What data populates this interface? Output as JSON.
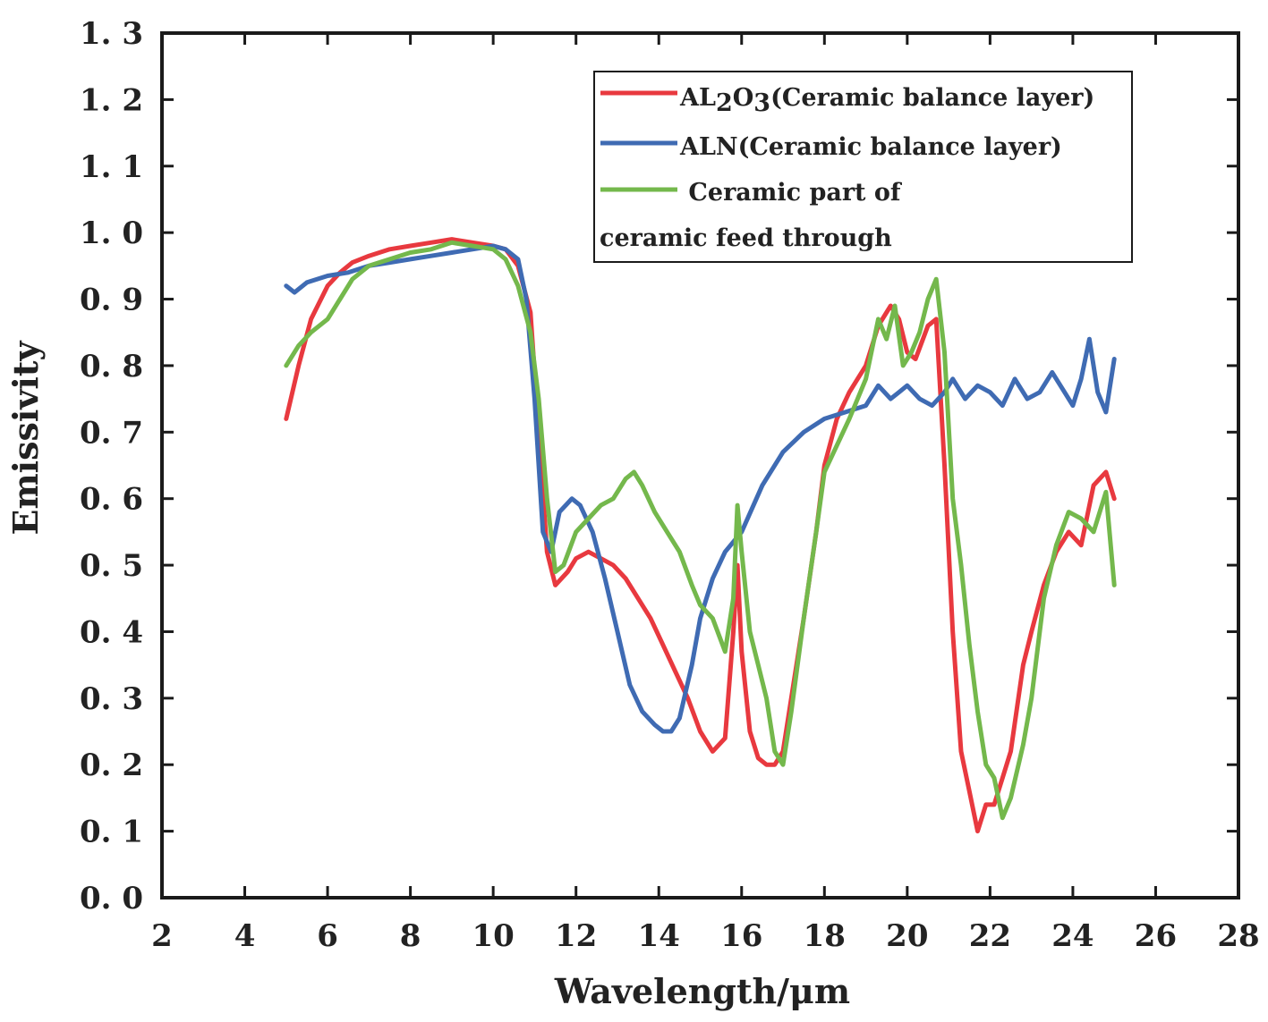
{
  "chart_data": {
    "type": "line",
    "title": "",
    "xlabel": "Wavelength/μm",
    "ylabel": "Emissivity",
    "xlim": [
      2,
      28
    ],
    "ylim": [
      0.0,
      1.3
    ],
    "xticks": [
      "2",
      "4",
      "6",
      "8",
      "10",
      "12",
      "14",
      "16",
      "18",
      "20",
      "22",
      "24",
      "26",
      "28"
    ],
    "yticks": [
      "0. 0",
      "0. 1",
      "0. 2",
      "0. 3",
      "0. 4",
      "0. 5",
      "0. 6",
      "0. 7",
      "0. 8",
      "0. 9",
      "1. 0",
      "1. 1",
      "1. 2",
      "1. 3"
    ],
    "grid": false,
    "legend_position": "top-right",
    "legend_lines": [
      {
        "series": 0,
        "prefix": "AL",
        "sub1": "2",
        "mid": "O",
        "sub2": "3",
        "suffix": "(Ceramic balance layer)"
      },
      {
        "series": 1,
        "text": "ALN(Ceramic balance layer)"
      },
      {
        "series": 2,
        "text": " Ceramic part of"
      },
      {
        "series": null,
        "text": "ceramic feed through"
      }
    ],
    "series": [
      {
        "name": "AL2O3(Ceramic balance layer)",
        "color": "#e8393f",
        "x": [
          5.0,
          5.3,
          5.6,
          6.0,
          6.3,
          6.6,
          7.0,
          7.5,
          8.0,
          8.5,
          9.0,
          9.5,
          10.0,
          10.3,
          10.6,
          10.9,
          11.1,
          11.3,
          11.5,
          11.8,
          12.0,
          12.3,
          12.6,
          12.9,
          13.2,
          13.5,
          13.8,
          14.1,
          14.4,
          14.7,
          15.0,
          15.3,
          15.6,
          15.8,
          15.9,
          16.0,
          16.2,
          16.4,
          16.6,
          16.8,
          17.0,
          17.2,
          17.5,
          17.8,
          18.0,
          18.3,
          18.6,
          19.0,
          19.3,
          19.6,
          19.8,
          20.0,
          20.2,
          20.5,
          20.7,
          20.9,
          21.1,
          21.3,
          21.5,
          21.7,
          21.9,
          22.1,
          22.3,
          22.5,
          22.8,
          23.0,
          23.3,
          23.6,
          23.9,
          24.2,
          24.5,
          24.8,
          25.0
        ],
        "y": [
          0.72,
          0.8,
          0.87,
          0.92,
          0.94,
          0.955,
          0.965,
          0.975,
          0.98,
          0.985,
          0.99,
          0.985,
          0.98,
          0.975,
          0.95,
          0.88,
          0.7,
          0.52,
          0.47,
          0.49,
          0.51,
          0.52,
          0.51,
          0.5,
          0.48,
          0.45,
          0.42,
          0.38,
          0.34,
          0.3,
          0.25,
          0.22,
          0.24,
          0.4,
          0.5,
          0.37,
          0.25,
          0.21,
          0.2,
          0.2,
          0.22,
          0.3,
          0.42,
          0.55,
          0.65,
          0.72,
          0.76,
          0.8,
          0.86,
          0.89,
          0.87,
          0.82,
          0.81,
          0.86,
          0.87,
          0.65,
          0.4,
          0.22,
          0.16,
          0.1,
          0.14,
          0.14,
          0.18,
          0.22,
          0.35,
          0.4,
          0.47,
          0.52,
          0.55,
          0.53,
          0.62,
          0.64,
          0.6
        ]
      },
      {
        "name": "ALN(Ceramic balance layer)",
        "color": "#3f6bb3",
        "x": [
          5.0,
          5.2,
          5.5,
          6.0,
          6.5,
          7.0,
          7.5,
          8.0,
          8.5,
          9.0,
          9.5,
          10.0,
          10.3,
          10.6,
          10.8,
          11.0,
          11.2,
          11.4,
          11.6,
          11.9,
          12.1,
          12.4,
          12.7,
          13.0,
          13.3,
          13.6,
          13.9,
          14.1,
          14.3,
          14.5,
          14.8,
          15.0,
          15.3,
          15.6,
          16.0,
          16.5,
          17.0,
          17.5,
          18.0,
          18.5,
          19.0,
          19.3,
          19.6,
          19.8,
          20.0,
          20.3,
          20.6,
          20.9,
          21.1,
          21.4,
          21.7,
          22.0,
          22.3,
          22.6,
          22.9,
          23.2,
          23.5,
          23.8,
          24.0,
          24.2,
          24.4,
          24.6,
          24.8,
          25.0
        ],
        "y": [
          0.92,
          0.91,
          0.925,
          0.935,
          0.94,
          0.95,
          0.955,
          0.96,
          0.965,
          0.97,
          0.975,
          0.98,
          0.975,
          0.96,
          0.9,
          0.75,
          0.55,
          0.52,
          0.58,
          0.6,
          0.59,
          0.55,
          0.48,
          0.4,
          0.32,
          0.28,
          0.26,
          0.25,
          0.25,
          0.27,
          0.35,
          0.42,
          0.48,
          0.52,
          0.55,
          0.62,
          0.67,
          0.7,
          0.72,
          0.73,
          0.74,
          0.77,
          0.75,
          0.76,
          0.77,
          0.75,
          0.74,
          0.76,
          0.78,
          0.75,
          0.77,
          0.76,
          0.74,
          0.78,
          0.75,
          0.76,
          0.79,
          0.76,
          0.74,
          0.78,
          0.84,
          0.76,
          0.73,
          0.81
        ]
      },
      {
        "name": "Ceramic part of ceramic feed through",
        "color": "#74b84c",
        "x": [
          5.0,
          5.3,
          5.6,
          6.0,
          6.3,
          6.6,
          7.0,
          7.5,
          8.0,
          8.5,
          9.0,
          9.5,
          10.0,
          10.3,
          10.6,
          10.9,
          11.1,
          11.3,
          11.5,
          11.7,
          12.0,
          12.3,
          12.6,
          12.9,
          13.2,
          13.4,
          13.6,
          13.9,
          14.2,
          14.5,
          14.8,
          15.0,
          15.3,
          15.6,
          15.8,
          15.9,
          16.0,
          16.2,
          16.4,
          16.6,
          16.8,
          17.0,
          17.2,
          17.5,
          17.8,
          18.0,
          18.3,
          18.6,
          19.0,
          19.3,
          19.5,
          19.7,
          19.9,
          20.1,
          20.3,
          20.5,
          20.7,
          20.9,
          21.1,
          21.3,
          21.5,
          21.7,
          21.9,
          22.1,
          22.3,
          22.5,
          22.8,
          23.0,
          23.3,
          23.6,
          23.9,
          24.2,
          24.5,
          24.8,
          25.0
        ],
        "y": [
          0.8,
          0.83,
          0.85,
          0.87,
          0.9,
          0.93,
          0.95,
          0.96,
          0.97,
          0.975,
          0.985,
          0.98,
          0.975,
          0.96,
          0.92,
          0.85,
          0.75,
          0.6,
          0.49,
          0.5,
          0.55,
          0.57,
          0.59,
          0.6,
          0.63,
          0.64,
          0.62,
          0.58,
          0.55,
          0.52,
          0.47,
          0.44,
          0.42,
          0.37,
          0.45,
          0.59,
          0.52,
          0.4,
          0.35,
          0.3,
          0.22,
          0.2,
          0.28,
          0.42,
          0.55,
          0.64,
          0.68,
          0.72,
          0.78,
          0.87,
          0.84,
          0.89,
          0.8,
          0.82,
          0.85,
          0.9,
          0.93,
          0.82,
          0.6,
          0.5,
          0.38,
          0.28,
          0.2,
          0.18,
          0.12,
          0.15,
          0.23,
          0.3,
          0.45,
          0.53,
          0.58,
          0.57,
          0.55,
          0.61,
          0.47
        ]
      }
    ]
  }
}
